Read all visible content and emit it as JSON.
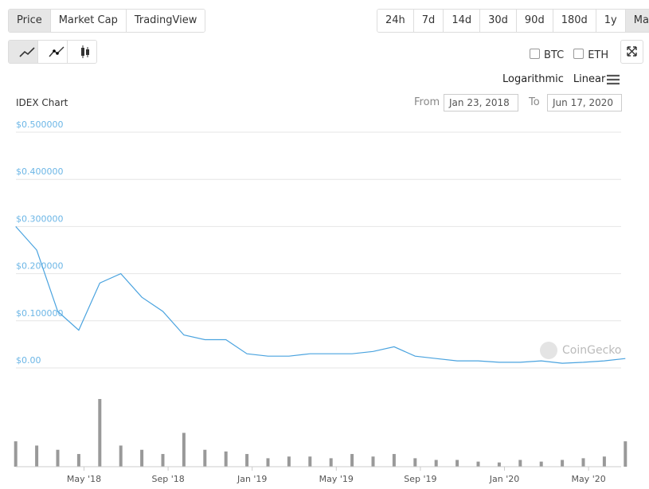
{
  "ui": {
    "tabs": [
      "Price",
      "Market Cap",
      "TradingView"
    ],
    "ranges": [
      "24h",
      "7d",
      "14d",
      "30d",
      "90d",
      "180d",
      "1y",
      "Max"
    ],
    "compare": [
      "BTC",
      "ETH"
    ],
    "scales": [
      "Logarithmic",
      "Linear"
    ],
    "from_label": "From",
    "from_value": "Jan 23, 2018",
    "to_label": "To",
    "to_value": "Jun 17, 2020",
    "watermark": "CoinGecko"
  },
  "chart_data": {
    "type": "line",
    "title": "IDEX Chart",
    "color": "#4aa3df",
    "grid": true,
    "x": [
      "2018-01",
      "2018-02",
      "2018-03",
      "2018-04",
      "2018-05",
      "2018-06",
      "2018-07",
      "2018-08",
      "2018-09",
      "2018-10",
      "2018-11",
      "2018-12",
      "2019-01",
      "2019-02",
      "2019-03",
      "2019-04",
      "2019-05",
      "2019-06",
      "2019-07",
      "2019-08",
      "2019-09",
      "2019-10",
      "2019-11",
      "2019-12",
      "2020-01",
      "2020-02",
      "2020-03",
      "2020-04",
      "2020-05",
      "2020-06"
    ],
    "values": [
      0.3,
      0.25,
      0.12,
      0.08,
      0.18,
      0.2,
      0.15,
      0.12,
      0.07,
      0.06,
      0.06,
      0.03,
      0.025,
      0.025,
      0.03,
      0.03,
      0.03,
      0.035,
      0.045,
      0.025,
      0.02,
      0.015,
      0.015,
      0.012,
      0.012,
      0.015,
      0.01,
      0.012,
      0.015,
      0.02
    ],
    "volume_values": [
      30,
      25,
      20,
      15,
      80,
      25,
      20,
      15,
      40,
      20,
      18,
      15,
      10,
      12,
      12,
      10,
      15,
      12,
      15,
      10,
      8,
      8,
      6,
      5,
      8,
      6,
      8,
      10,
      12,
      30
    ],
    "ylim": [
      0,
      0.5
    ],
    "yticks": [
      {
        "value": 0,
        "label": "$0.00"
      },
      {
        "value": 0.1,
        "label": "$0.100000"
      },
      {
        "value": 0.2,
        "label": "$0.200000"
      },
      {
        "value": 0.3,
        "label": "$0.300000"
      },
      {
        "value": 0.4,
        "label": "$0.400000"
      },
      {
        "value": 0.5,
        "label": "$0.500000"
      }
    ],
    "xticks": [
      {
        "value": "2018-05",
        "label": "May '18"
      },
      {
        "value": "2018-09",
        "label": "Sep '18"
      },
      {
        "value": "2019-01",
        "label": "Jan '19"
      },
      {
        "value": "2019-05",
        "label": "May '19"
      },
      {
        "value": "2019-09",
        "label": "Sep '19"
      },
      {
        "value": "2020-01",
        "label": "Jan '20"
      },
      {
        "value": "2020-05",
        "label": "May '20"
      }
    ]
  }
}
